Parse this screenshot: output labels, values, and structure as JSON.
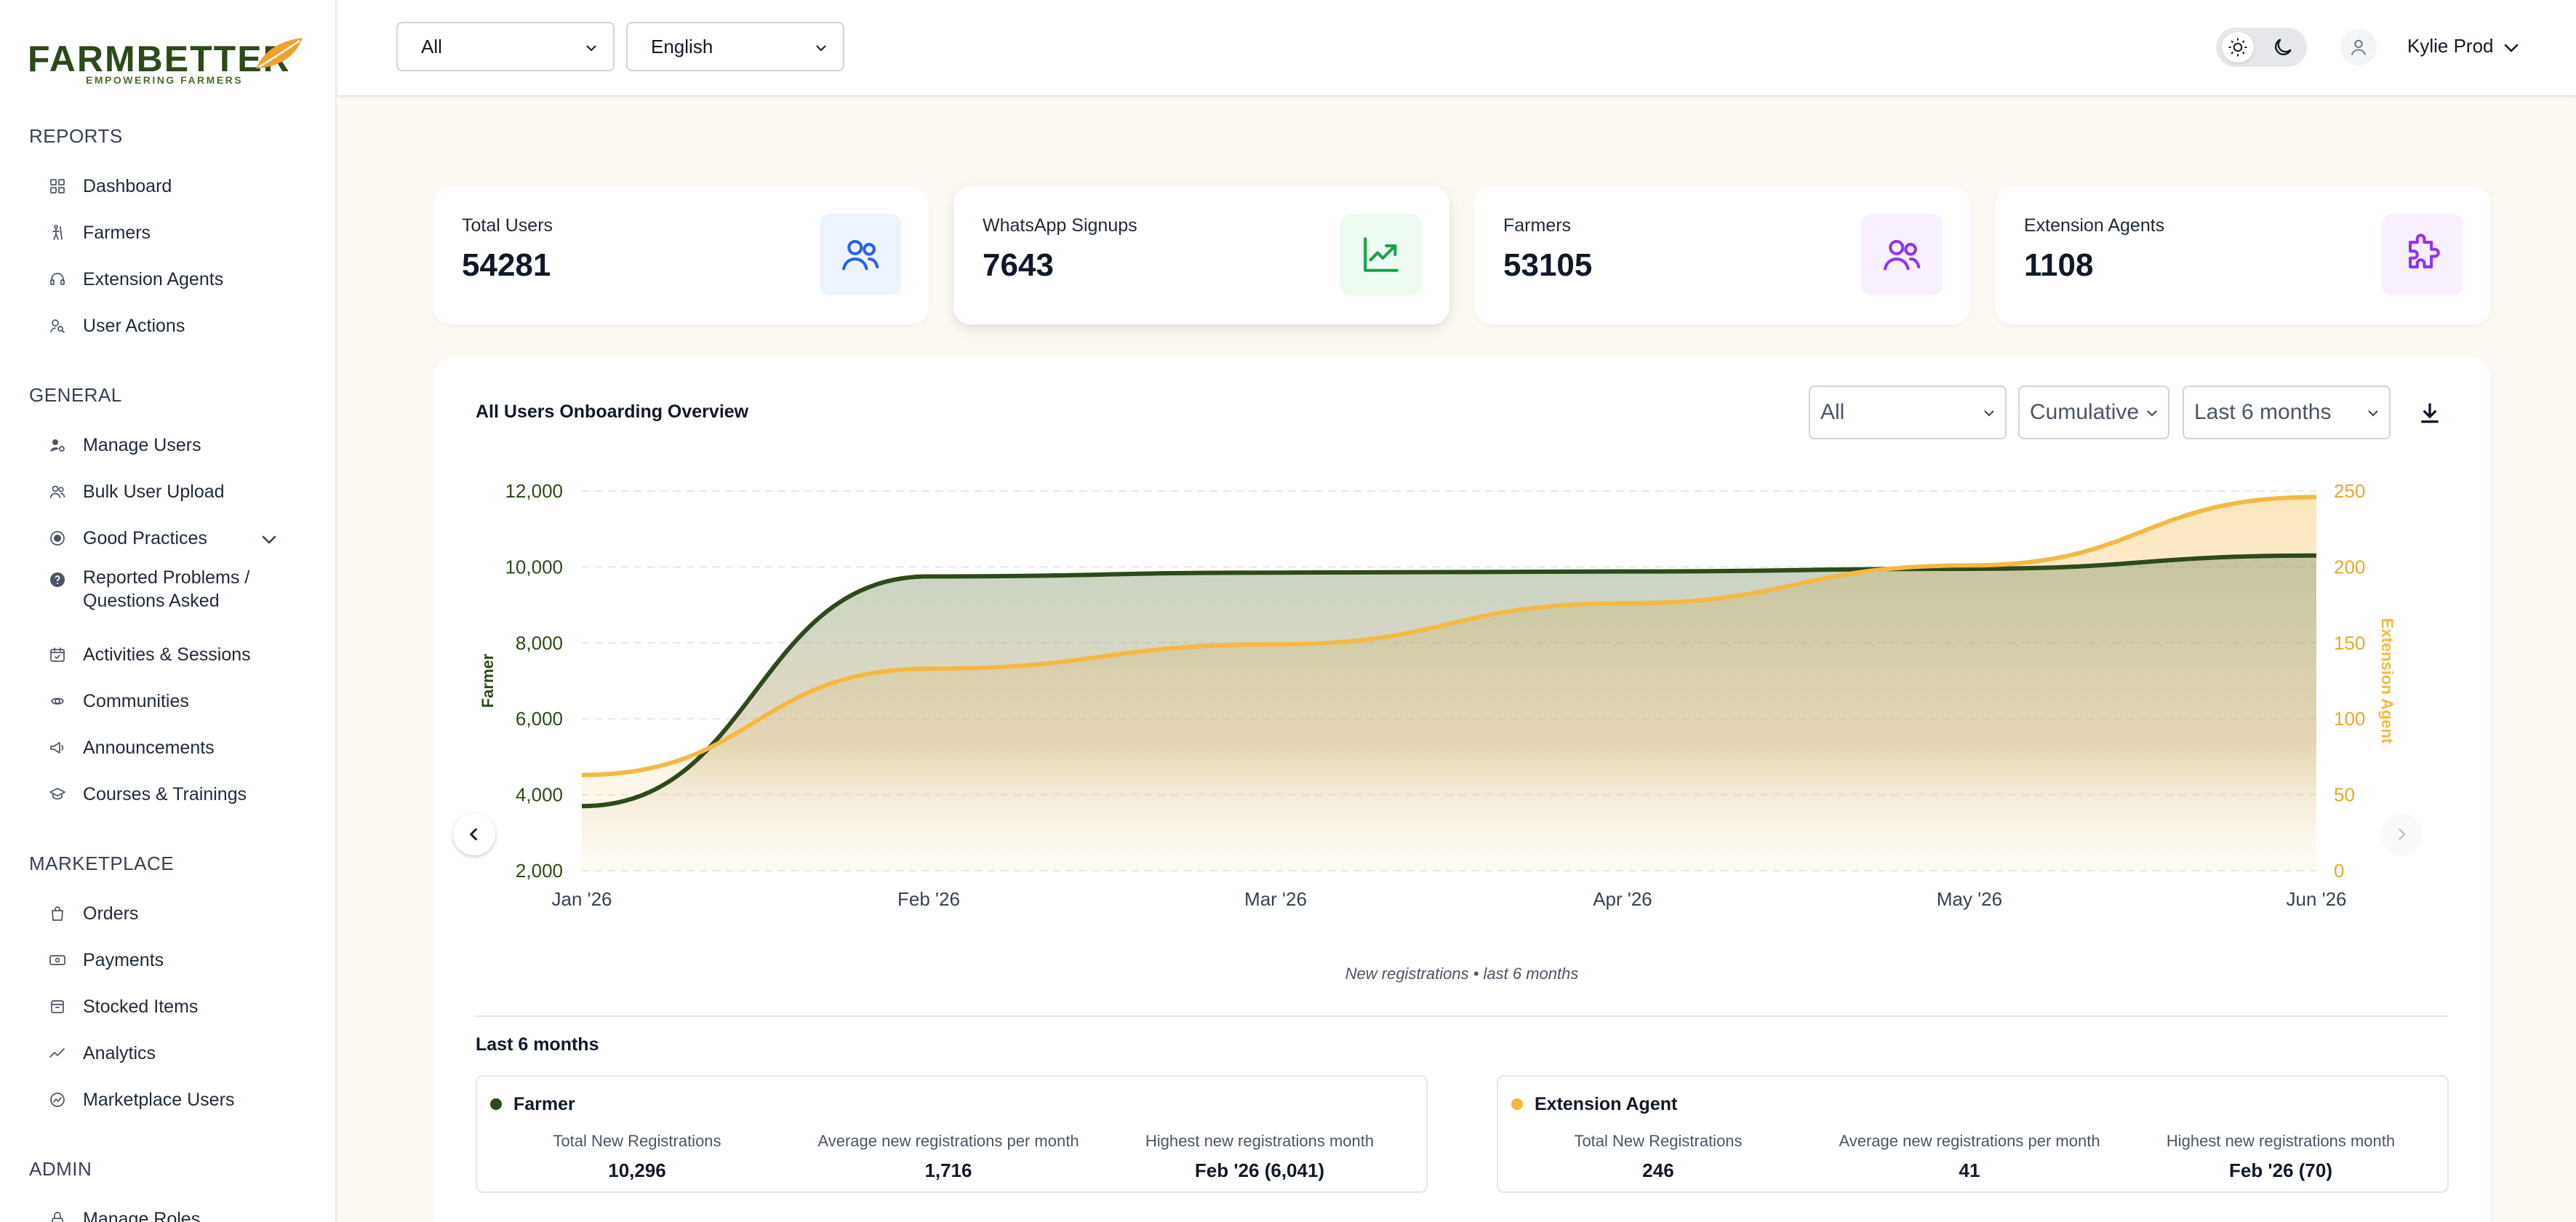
{
  "brand": {
    "name": "FARMBETTER",
    "tagline": "EMPOWERING FARMERS",
    "accent": "#2d4a1a",
    "leaf_color": "#f0a12b"
  },
  "sidebar": {
    "sections": [
      {
        "title": "REPORTS",
        "items": [
          {
            "label": "Dashboard",
            "icon": "grid-icon"
          },
          {
            "label": "Farmers",
            "icon": "farmer-icon"
          },
          {
            "label": "Extension Agents",
            "icon": "headset-icon"
          },
          {
            "label": "User Actions",
            "icon": "user-search-icon"
          }
        ]
      },
      {
        "title": "GENERAL",
        "items": [
          {
            "label": "Manage Users",
            "icon": "user-gear-icon"
          },
          {
            "label": "Bulk User Upload",
            "icon": "users-icon"
          },
          {
            "label": "Good Practices",
            "icon": "target-icon"
          },
          {
            "label": "Reported Problems / Questions Asked",
            "line1": "Reported Problems /",
            "line2": "Questions Asked",
            "icon": "question-icon"
          },
          {
            "label": "Activities & Sessions",
            "icon": "calendar-check-icon"
          },
          {
            "label": "Communities",
            "icon": "community-icon"
          },
          {
            "label": "Announcements",
            "icon": "megaphone-icon"
          },
          {
            "label": "Courses & Trainings",
            "icon": "graduation-cap-icon"
          }
        ]
      },
      {
        "title": "MARKETPLACE",
        "items": [
          {
            "label": "Orders",
            "icon": "bag-icon"
          },
          {
            "label": "Payments",
            "icon": "money-icon"
          },
          {
            "label": "Stocked Items",
            "icon": "box-icon"
          },
          {
            "label": "Analytics",
            "icon": "trend-icon"
          },
          {
            "label": "Marketplace Users",
            "icon": "user-circle-icon"
          }
        ]
      },
      {
        "title": "ADMIN",
        "items": [
          {
            "label": "Manage Roles",
            "icon": "lock-icon"
          }
        ]
      }
    ]
  },
  "header": {
    "filter_value": "All",
    "language_value": "English",
    "user_name": "Kylie Prod"
  },
  "stats": [
    {
      "label": "Total Users",
      "value": "54281",
      "icon": "users-icon",
      "color": "#2563eb",
      "bg": "#eef4ff"
    },
    {
      "label": "WhatsApp Signups",
      "value": "7643",
      "icon": "trend-up-icon",
      "color": "#16a34a",
      "bg": "#edfbf1"
    },
    {
      "label": "Farmers",
      "value": "53105",
      "icon": "users-icon",
      "color": "#9333ea",
      "bg": "#f8f0ff"
    },
    {
      "label": "Extension Agents",
      "value": "1108",
      "icon": "puzzle-icon",
      "color": "#9333ea",
      "bg": "#f8f0ff"
    }
  ],
  "panel": {
    "title": "All Users Onboarding Overview",
    "filters": {
      "group": "All",
      "mode": "Cumulative",
      "range": "Last 6 months"
    },
    "caption": "New registrations • last 6 months",
    "period_label": "Last 6 months",
    "summaries": [
      {
        "name": "Farmer",
        "color": "#2d4a1a",
        "stats": [
          {
            "label": "Total New Registrations",
            "value": "10,296"
          },
          {
            "label": "Average new registrations per month",
            "value": "1,716"
          },
          {
            "label": "Highest new registrations month",
            "value": "Feb '26 (6,041)"
          }
        ]
      },
      {
        "name": "Extension Agent",
        "color": "#f4b942",
        "stats": [
          {
            "label": "Total New Registrations",
            "value": "246"
          },
          {
            "label": "Average new registrations per month",
            "value": "41"
          },
          {
            "label": "Highest new registrations month",
            "value": "Feb '26 (70)"
          }
        ]
      }
    ]
  },
  "chart_data": {
    "type": "area",
    "x": [
      "Jan '26",
      "Feb '26",
      "Mar '26",
      "Apr '26",
      "May '26",
      "Jun '26"
    ],
    "series": [
      {
        "name": "Farmer",
        "axis": "left",
        "color": "#2d4a1a",
        "values": [
          3700,
          9750,
          9850,
          9880,
          9950,
          10300
        ]
      },
      {
        "name": "Extension Agent",
        "axis": "right",
        "color": "#f4b942",
        "values": [
          63,
          133,
          149,
          176,
          201,
          246
        ]
      }
    ],
    "ylabel": "Farmer",
    "y2label": "Extension Agent",
    "ylim": [
      2000,
      12000
    ],
    "y2lim": [
      0,
      250
    ],
    "yticks": [
      "12,000",
      "10,000",
      "8,000",
      "6,000",
      "4,000",
      "2,000"
    ],
    "y2ticks": [
      "250",
      "200",
      "150",
      "100",
      "50",
      "0"
    ],
    "grid": true
  }
}
